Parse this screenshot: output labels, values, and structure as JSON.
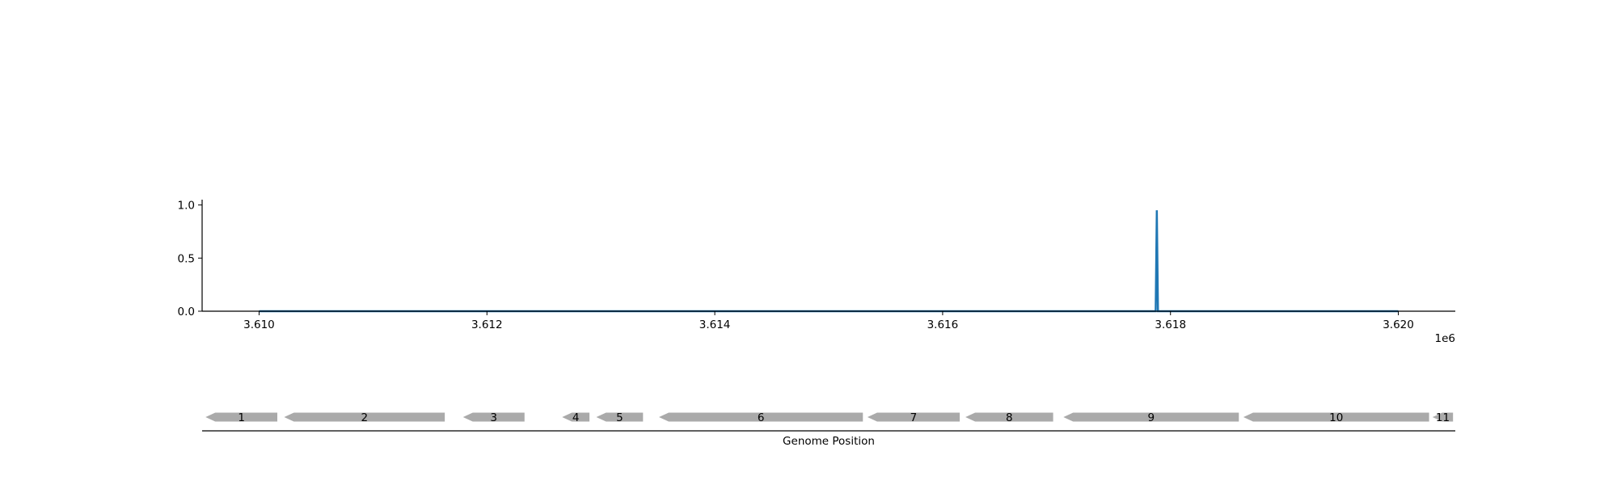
{
  "chart_data": {
    "type": "line",
    "title": "",
    "xlabel": "Genome Position",
    "ylabel": "",
    "x_offset_label": "1e6",
    "xlim": [
      3609500,
      3620500
    ],
    "ylim": [
      0,
      1.05
    ],
    "x_ticks": [
      3610000,
      3612000,
      3614000,
      3616000,
      3618000,
      3620000
    ],
    "x_tick_labels": [
      "3.610",
      "3.612",
      "3.614",
      "3.616",
      "3.618",
      "3.620"
    ],
    "y_ticks": [
      0,
      0.5,
      1.0
    ],
    "y_tick_labels": [
      "0.0",
      "0.5",
      "1.0"
    ],
    "grid": false,
    "series": [
      {
        "color": "#1f77b4",
        "x": [
          3610000,
          3617870,
          3617880,
          3617890,
          3620000
        ],
        "y": [
          0,
          0,
          0.95,
          0,
          0
        ]
      }
    ],
    "genes": [
      {
        "label": "1",
        "start": 3609530,
        "end": 3610160,
        "strand": "-"
      },
      {
        "label": "2",
        "start": 3610220,
        "end": 3611630,
        "strand": "-"
      },
      {
        "label": "3",
        "start": 3611790,
        "end": 3612330,
        "strand": "-"
      },
      {
        "label": "4",
        "start": 3612660,
        "end": 3612900,
        "strand": "-"
      },
      {
        "label": "5",
        "start": 3612960,
        "end": 3613370,
        "strand": "-"
      },
      {
        "label": "6",
        "start": 3613510,
        "end": 3615300,
        "strand": "-"
      },
      {
        "label": "7",
        "start": 3615340,
        "end": 3616150,
        "strand": "-"
      },
      {
        "label": "8",
        "start": 3616200,
        "end": 3616970,
        "strand": "-"
      },
      {
        "label": "9",
        "start": 3617060,
        "end": 3618600,
        "strand": "-"
      },
      {
        "label": "10",
        "start": 3618640,
        "end": 3620270,
        "strand": "-"
      },
      {
        "label": "11",
        "start": 3620300,
        "end": 3620480,
        "strand": "-"
      }
    ],
    "gene_color": "#aaaaaa"
  }
}
